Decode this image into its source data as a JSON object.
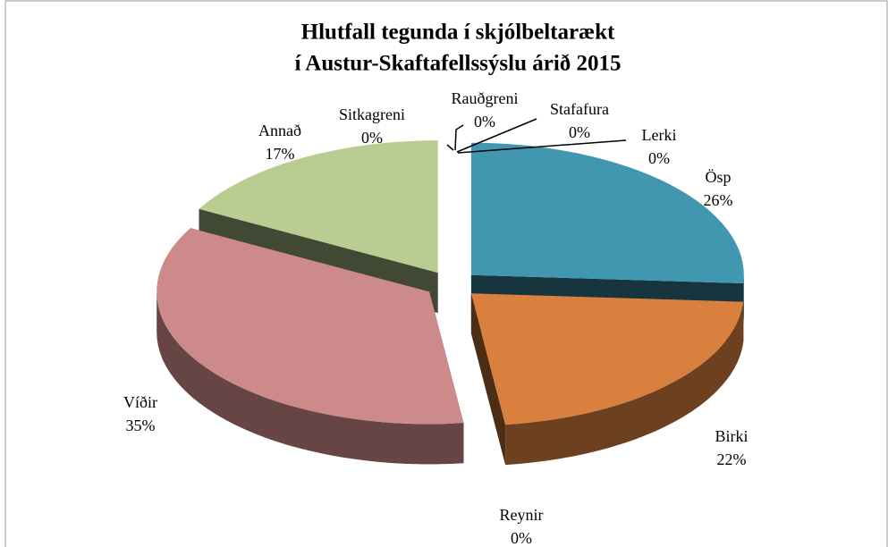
{
  "chart_data": {
    "type": "pie3d",
    "title": [
      "Hlutfall tegunda í skjólbeltarækt",
      "í Austur-Skaftafellssýslu árið 2015"
    ],
    "categories": [
      "Ösp",
      "Birki",
      "Reynir",
      "Víðir",
      "Annað",
      "Sitkagreni",
      "Rauðgreni",
      "Stafafura",
      "Lerki"
    ],
    "values": [
      26,
      22,
      0,
      35,
      17,
      0,
      0,
      0,
      0
    ],
    "value_labels": [
      "26%",
      "22%",
      "0%",
      "35%",
      "17%",
      "0%",
      "0%",
      "0%",
      "0%"
    ],
    "colors": [
      "#4197b0",
      "#d9803e",
      "#3a4a66",
      "#cd8a8a",
      "#b9cd93",
      "#4f81bd",
      "#c0504d",
      "#9bbb59",
      "#8064a2"
    ]
  }
}
